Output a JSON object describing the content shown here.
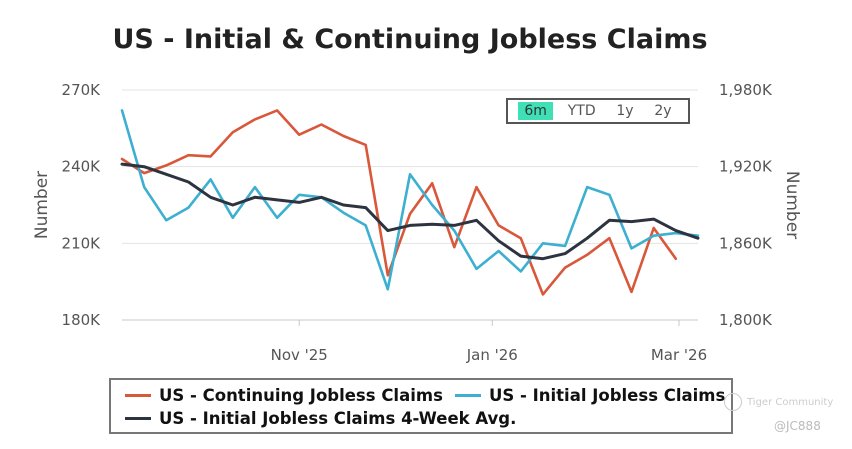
{
  "chart_data": {
    "type": "line",
    "title": "US - Initial & Continuing Jobless Claims",
    "x_tick_labels": [
      "Nov '25",
      "Jan '26",
      "Mar '26"
    ],
    "left_axis": {
      "label": "Number",
      "ticks": [
        "270K",
        "240K",
        "210K",
        "180K"
      ],
      "range": [
        180000,
        270000
      ]
    },
    "right_axis": {
      "label": "Number",
      "ticks": [
        "1,980K",
        "1,920K",
        "1,860K",
        "1,800K"
      ],
      "range": [
        1800000,
        1980000
      ]
    },
    "range_buttons": [
      {
        "label": "6m",
        "active": true
      },
      {
        "label": "YTD",
        "active": false
      },
      {
        "label": "1y",
        "active": false
      },
      {
        "label": "2y",
        "active": false
      }
    ],
    "legend_position": "bottom",
    "grid": true,
    "x_range": [
      "2025-09-06",
      "2026-03-07"
    ],
    "series": [
      {
        "name": "US - Continuing Jobless Claims",
        "axis": "right",
        "color": "#d9573b",
        "x": [
          "2025-09-06",
          "2025-09-13",
          "2025-09-20",
          "2025-09-27",
          "2025-10-04",
          "2025-10-11",
          "2025-10-18",
          "2025-10-25",
          "2025-11-01",
          "2025-11-08",
          "2025-11-15",
          "2025-11-22",
          "2025-11-29",
          "2025-12-06",
          "2025-12-13",
          "2025-12-20",
          "2025-12-27",
          "2026-01-03",
          "2026-01-10",
          "2026-01-17",
          "2026-01-24",
          "2026-01-31",
          "2026-02-07",
          "2026-02-14",
          "2026-02-21",
          "2026-02-28"
        ],
        "values": [
          1926000,
          1915000,
          1921000,
          1929000,
          1928000,
          1947000,
          1957000,
          1964000,
          1945000,
          1953000,
          1944000,
          1937000,
          1835000,
          1883000,
          1907000,
          1857000,
          1904000,
          1874000,
          1864000,
          1820000,
          1841000,
          1851000,
          1864000,
          1822000,
          1872000,
          1848000
        ]
      },
      {
        "name": "US - Initial Jobless Claims",
        "axis": "left",
        "color": "#3dafd0",
        "x": [
          "2025-09-06",
          "2025-09-13",
          "2025-09-20",
          "2025-09-27",
          "2025-10-04",
          "2025-10-11",
          "2025-10-18",
          "2025-10-25",
          "2025-11-01",
          "2025-11-08",
          "2025-11-15",
          "2025-11-22",
          "2025-11-29",
          "2025-12-06",
          "2025-12-13",
          "2025-12-20",
          "2025-12-27",
          "2026-01-03",
          "2026-01-10",
          "2026-01-17",
          "2026-01-24",
          "2026-01-31",
          "2026-02-07",
          "2026-02-14",
          "2026-02-21",
          "2026-02-28",
          "2026-03-07"
        ],
        "values": [
          262000,
          232000,
          219000,
          224000,
          235000,
          220000,
          232000,
          220000,
          229000,
          228000,
          222000,
          217000,
          192000,
          237000,
          225000,
          215000,
          200000,
          207000,
          199000,
          210000,
          209000,
          232000,
          229000,
          208000,
          213000,
          214000,
          213000
        ]
      },
      {
        "name": "US - Initial Jobless Claims 4-Week Avg.",
        "axis": "left",
        "color": "#2d3440",
        "x": [
          "2025-09-06",
          "2025-09-13",
          "2025-09-20",
          "2025-09-27",
          "2025-10-04",
          "2025-10-11",
          "2025-10-18",
          "2025-10-25",
          "2025-11-01",
          "2025-11-08",
          "2025-11-15",
          "2025-11-22",
          "2025-11-29",
          "2025-12-06",
          "2025-12-13",
          "2025-12-20",
          "2025-12-27",
          "2026-01-03",
          "2026-01-10",
          "2026-01-17",
          "2026-01-24",
          "2026-01-31",
          "2026-02-07",
          "2026-02-14",
          "2026-02-21",
          "2026-02-28",
          "2026-03-07"
        ],
        "values": [
          241000,
          240000,
          237000,
          234000,
          228000,
          225000,
          228000,
          227000,
          226000,
          228000,
          225000,
          224000,
          215000,
          217000,
          217500,
          217000,
          219000,
          211000,
          205000,
          204000,
          206000,
          212000,
          219000,
          218500,
          219500,
          215000,
          212000
        ]
      }
    ]
  },
  "watermark": {
    "brand": "Tiger Community",
    "handle": "@JC888"
  }
}
